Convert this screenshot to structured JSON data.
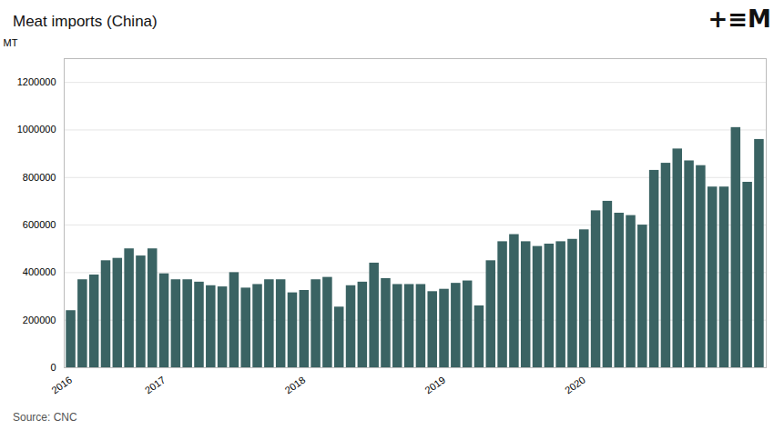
{
  "chart_data": {
    "type": "bar",
    "title": "Meat imports (China)",
    "ylabel": "MT",
    "annotations": [
      "Source: CNC",
      "+≡M"
    ],
    "categories": [
      "2016",
      null,
      null,
      null,
      null,
      null,
      null,
      null,
      "2017",
      null,
      null,
      null,
      null,
      null,
      null,
      null,
      null,
      null,
      null,
      null,
      "2018",
      null,
      null,
      null,
      null,
      null,
      null,
      null,
      null,
      null,
      null,
      null,
      "2019",
      null,
      null,
      null,
      null,
      null,
      null,
      null,
      null,
      null,
      null,
      null,
      "2020",
      null,
      null,
      null,
      null,
      null,
      null,
      null,
      null,
      null,
      null,
      null,
      null,
      null,
      null,
      null
    ],
    "values": [
      240000,
      370000,
      390000,
      450000,
      460000,
      500000,
      470000,
      500000,
      395000,
      370000,
      370000,
      360000,
      345000,
      340000,
      400000,
      335000,
      350000,
      370000,
      370000,
      315000,
      325000,
      370000,
      380000,
      255000,
      345000,
      360000,
      440000,
      375000,
      350000,
      350000,
      350000,
      320000,
      330000,
      355000,
      365000,
      260000,
      450000,
      530000,
      560000,
      530000,
      510000,
      520000,
      530000,
      540000,
      580000,
      660000,
      700000,
      650000,
      640000,
      600000,
      830000,
      860000,
      920000,
      870000,
      850000,
      760000,
      760000,
      1010000,
      780000,
      960000
    ],
    "color": "#3a6363",
    "ylim": [
      0,
      1300000
    ],
    "yticks": [
      0,
      200000,
      400000,
      600000,
      800000,
      1000000,
      1200000
    ],
    "grid": true
  }
}
